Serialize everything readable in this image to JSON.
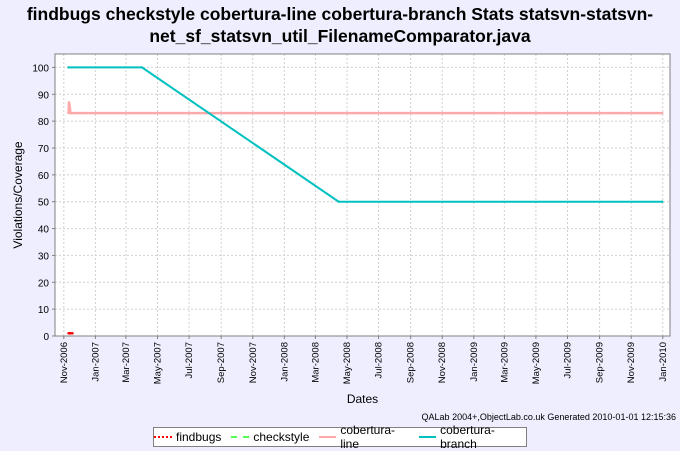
{
  "title_line1": "findbugs checkstyle cobertura-line cobertura-branch  Stats statsvn-statsvn-",
  "title_line2": "net_sf_statsvn_util_FilenameComparator.java",
  "credit": "QALab 2004+,ObjectLab.co.uk Generated 2010-01-01 12:15:36",
  "chart_data": {
    "type": "line",
    "title": "findbugs checkstyle cobertura-line cobertura-branch  Stats statsvn-statsvn-net_sf_statsvn_util_FilenameComparator.java",
    "xlabel": "Dates",
    "ylabel": "Violations/Coverage",
    "ylim": [
      0,
      105
    ],
    "xlim": [
      "2006-10-15",
      "2010-01-15"
    ],
    "yticks": [
      0,
      10,
      20,
      30,
      40,
      50,
      60,
      70,
      80,
      90,
      100
    ],
    "xticks": [
      "Nov-2006",
      "Jan-2007",
      "Mar-2007",
      "May-2007",
      "Jul-2007",
      "Sep-2007",
      "Nov-2007",
      "Jan-2008",
      "Mar-2008",
      "May-2008",
      "Jul-2008",
      "Sep-2008",
      "Nov-2008",
      "Jan-2009",
      "Mar-2009",
      "May-2009",
      "Jul-2009",
      "Sep-2009",
      "Nov-2009",
      "Jan-2010"
    ],
    "grid": true,
    "legend_position": "bottom",
    "series": [
      {
        "name": "findbugs",
        "color": "#ff0000",
        "dash": "dotted",
        "x": [
          "2006-11-10",
          "2006-11-12",
          "2006-11-14",
          "2006-11-16",
          "2006-11-18"
        ],
        "y": [
          1,
          1,
          1,
          1,
          1
        ]
      },
      {
        "name": "checkstyle",
        "color": "#55ff55",
        "dash": "dashed",
        "x": [],
        "y": []
      },
      {
        "name": "cobertura-line",
        "color": "#ffaaaa",
        "dash": "solid",
        "x": [
          "2006-11-10",
          "2006-11-11",
          "2006-11-12",
          "2006-11-14",
          "2009-12-31"
        ],
        "y": [
          83,
          87,
          86,
          83,
          83
        ]
      },
      {
        "name": "cobertura-branch",
        "color": "#00c0c0",
        "dash": "solid",
        "x": [
          "2006-11-10",
          "2007-04-01",
          "2008-04-15",
          "2009-12-31"
        ],
        "y": [
          100,
          100,
          50,
          50
        ]
      }
    ]
  }
}
